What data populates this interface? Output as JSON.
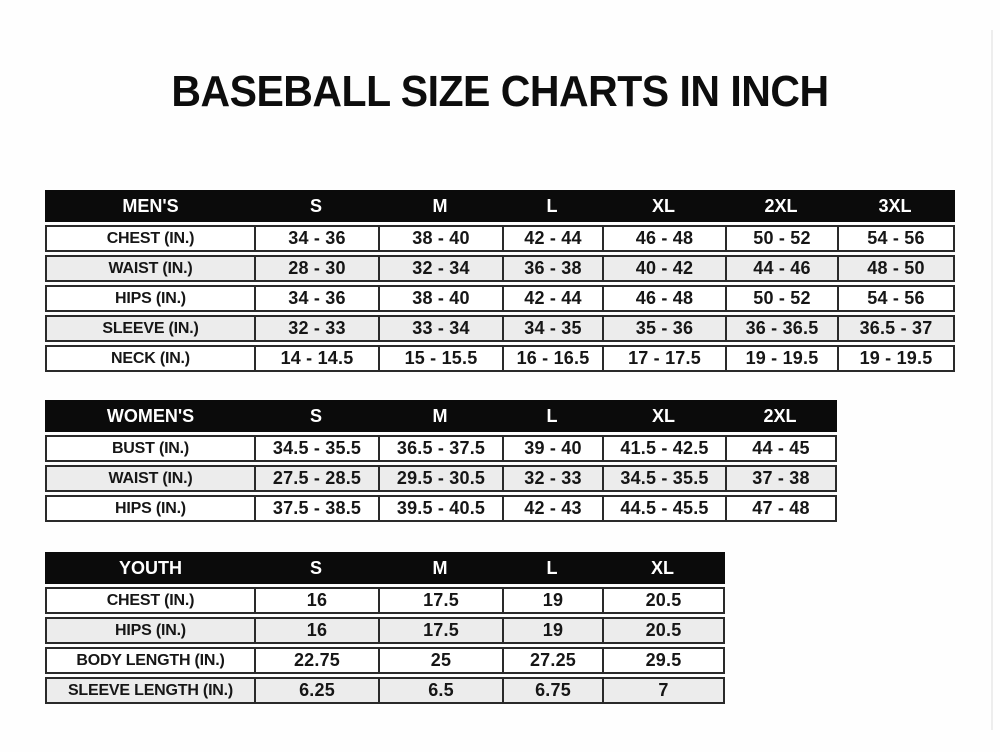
{
  "title": "BASEBALL SIZE CHARTS IN INCH",
  "colors": {
    "header_bg": "#0b0b0b",
    "header_text": "#ffffff",
    "row_alt_bg": "#ececec",
    "border": "#2a2a2a"
  },
  "tables": [
    {
      "name": "MEN'S",
      "columns": [
        "S",
        "M",
        "L",
        "XL",
        "2XL",
        "3XL"
      ],
      "rows": [
        {
          "label": "CHEST (IN.)",
          "values": [
            "34 - 36",
            "38 - 40",
            "42 - 44",
            "46 - 48",
            "50 - 52",
            "54 - 56"
          ]
        },
        {
          "label": "WAIST (IN.)",
          "values": [
            "28 - 30",
            "32 - 34",
            "36 - 38",
            "40 - 42",
            "44 - 46",
            "48 - 50"
          ]
        },
        {
          "label": "HIPS (IN.)",
          "values": [
            "34 - 36",
            "38 - 40",
            "42 - 44",
            "46 - 48",
            "50 - 52",
            "54 - 56"
          ]
        },
        {
          "label": "SLEEVE (IN.)",
          "values": [
            "32 - 33",
            "33 - 34",
            "34 - 35",
            "35 - 36",
            "36 - 36.5",
            "36.5 - 37"
          ]
        },
        {
          "label": "NECK (IN.)",
          "values": [
            "14 - 14.5",
            "15 - 15.5",
            "16 - 16.5",
            "17 - 17.5",
            "19 - 19.5",
            "19 - 19.5"
          ]
        }
      ]
    },
    {
      "name": "WOMEN'S",
      "columns": [
        "S",
        "M",
        "L",
        "XL",
        "2XL"
      ],
      "rows": [
        {
          "label": "BUST (IN.)",
          "values": [
            "34.5 - 35.5",
            "36.5 - 37.5",
            "39 - 40",
            "41.5 - 42.5",
            "44 - 45"
          ]
        },
        {
          "label": "WAIST (IN.)",
          "values": [
            "27.5 - 28.5",
            "29.5 - 30.5",
            "32 - 33",
            "34.5 - 35.5",
            "37 - 38"
          ]
        },
        {
          "label": "HIPS (IN.)",
          "values": [
            "37.5 - 38.5",
            "39.5 - 40.5",
            "42 - 43",
            "44.5 - 45.5",
            "47 - 48"
          ]
        }
      ]
    },
    {
      "name": "YOUTH",
      "columns": [
        "S",
        "M",
        "L",
        "XL"
      ],
      "rows": [
        {
          "label": "CHEST (IN.)",
          "values": [
            "16",
            "17.5",
            "19",
            "20.5"
          ]
        },
        {
          "label": "HIPS (IN.)",
          "values": [
            "16",
            "17.5",
            "19",
            "20.5"
          ]
        },
        {
          "label": "BODY LENGTH (IN.)",
          "values": [
            "22.75",
            "25",
            "27.25",
            "29.5"
          ]
        },
        {
          "label": "SLEEVE LENGTH (IN.)",
          "values": [
            "6.25",
            "6.5",
            "6.75",
            "7"
          ]
        }
      ]
    }
  ]
}
